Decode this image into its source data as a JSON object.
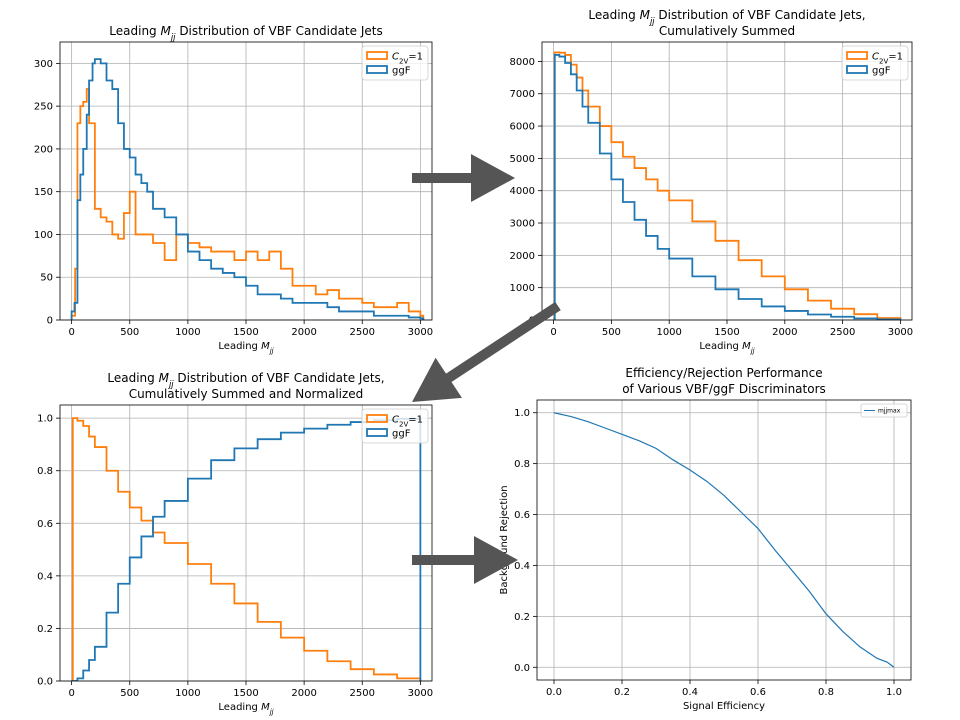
{
  "colors": {
    "c2v": "#ff7f0e",
    "ggf": "#1f77b4",
    "arrow": "#555555",
    "grid": "#b0b0b0"
  },
  "arrows": [
    {
      "name": "arrow-hist-to-cumulative"
    },
    {
      "name": "arrow-cumulative-to-normalized"
    },
    {
      "name": "arrow-normalized-to-roc"
    }
  ],
  "chart_data": [
    {
      "id": "hist",
      "type": "step",
      "title": "Leading $M_{jj}$ Distribution of VBF Candidate Jets",
      "title_parts": [
        {
          "t": "Leading "
        },
        {
          "t": "M",
          "it": true
        },
        {
          "t": "jj",
          "sub": true,
          "it": true
        },
        {
          "t": " Distribution of VBF Candidate Jets"
        }
      ],
      "title2": "",
      "xlabel_parts": [
        {
          "t": "Leading "
        },
        {
          "t": "M",
          "it": true
        },
        {
          "t": "jj",
          "sub": true,
          "it": true
        }
      ],
      "ylabel": "",
      "xlim": [
        -100,
        3100
      ],
      "ylim": [
        0,
        325
      ],
      "xticks": [
        0,
        500,
        1000,
        1500,
        2000,
        2500,
        3000
      ],
      "yticks": [
        0,
        50,
        100,
        150,
        200,
        250,
        300
      ],
      "ytick_fmt": 0,
      "grid": true,
      "legend": "upper right",
      "series": [
        {
          "label_parts": [
            {
              "t": "C",
              "it": true
            },
            {
              "t": "2V",
              "sub": true
            },
            {
              "t": "=1"
            }
          ],
          "color": "#ff7f0e",
          "x": [
            0,
            30,
            50,
            75,
            100,
            130,
            150,
            200,
            250,
            300,
            350,
            400,
            450,
            500,
            550,
            600,
            650,
            700,
            800,
            900,
            1000,
            1100,
            1200,
            1300,
            1400,
            1500,
            1600,
            1700,
            1800,
            1900,
            2000,
            2100,
            2200,
            2300,
            2400,
            2500,
            2600,
            2700,
            2800,
            2900,
            3000
          ],
          "y": [
            5,
            60,
            230,
            250,
            255,
            270,
            230,
            130,
            120,
            115,
            100,
            95,
            125,
            150,
            100,
            100,
            100,
            90,
            70,
            100,
            90,
            85,
            80,
            80,
            70,
            80,
            70,
            80,
            60,
            40,
            40,
            30,
            35,
            25,
            25,
            20,
            15,
            15,
            20,
            10,
            5
          ]
        },
        {
          "label_parts": [
            {
              "t": "ggF"
            }
          ],
          "color": "#1f77b4",
          "x": [
            0,
            25,
            50,
            75,
            100,
            130,
            150,
            180,
            200,
            250,
            300,
            350,
            400,
            450,
            500,
            550,
            600,
            650,
            700,
            800,
            900,
            1000,
            1100,
            1200,
            1300,
            1400,
            1500,
            1600,
            1700,
            1800,
            1900,
            2000,
            2100,
            2200,
            2300,
            2400,
            2500,
            2600,
            2700,
            2800,
            2900,
            3000
          ],
          "y": [
            10,
            20,
            140,
            170,
            200,
            240,
            280,
            300,
            305,
            300,
            280,
            270,
            230,
            200,
            190,
            170,
            160,
            150,
            130,
            120,
            100,
            80,
            70,
            60,
            55,
            50,
            40,
            30,
            30,
            25,
            20,
            20,
            20,
            15,
            10,
            10,
            10,
            5,
            5,
            5,
            3,
            2
          ]
        }
      ]
    },
    {
      "id": "cumulative",
      "type": "step",
      "title": "Leading $M_{jj}$ Distribution of VBF Candidate Jets,",
      "title_parts": [
        {
          "t": "Leading "
        },
        {
          "t": "M",
          "it": true
        },
        {
          "t": "jj",
          "sub": true,
          "it": true
        },
        {
          "t": " Distribution of VBF Candidate Jets,"
        }
      ],
      "title2": "Cumulatively Summed",
      "xlabel_parts": [
        {
          "t": "Leading "
        },
        {
          "t": "M",
          "it": true
        },
        {
          "t": "jj",
          "sub": true,
          "it": true
        }
      ],
      "ylabel": "",
      "xlim": [
        -100,
        3100
      ],
      "ylim": [
        0,
        8600
      ],
      "xticks": [
        0,
        500,
        1000,
        1500,
        2000,
        2500,
        3000
      ],
      "yticks": [
        0,
        1000,
        2000,
        3000,
        4000,
        5000,
        6000,
        7000,
        8000
      ],
      "ytick_fmt": 0,
      "grid": true,
      "legend": "upper right",
      "series": [
        {
          "label_parts": [
            {
              "t": "C",
              "it": true
            },
            {
              "t": "2V",
              "sub": true
            },
            {
              "t": "=1"
            }
          ],
          "color": "#ff7f0e",
          "x": [
            0,
            10,
            50,
            100,
            150,
            200,
            250,
            300,
            400,
            500,
            600,
            700,
            800,
            900,
            1000,
            1200,
            1400,
            1600,
            1800,
            2000,
            2200,
            2400,
            2600,
            2800,
            3000
          ],
          "y": [
            0,
            8280,
            8270,
            8200,
            7900,
            7500,
            7100,
            6600,
            6000,
            5500,
            5050,
            4700,
            4350,
            4000,
            3700,
            3050,
            2450,
            1850,
            1350,
            950,
            600,
            350,
            180,
            60,
            0
          ]
        },
        {
          "label_parts": [
            {
              "t": "ggF"
            }
          ],
          "color": "#1f77b4",
          "x": [
            0,
            10,
            50,
            100,
            150,
            200,
            250,
            300,
            400,
            500,
            600,
            700,
            800,
            900,
            1000,
            1200,
            1400,
            1600,
            1800,
            2000,
            2200,
            2400,
            2600,
            2800,
            3000
          ],
          "y": [
            0,
            8200,
            8150,
            7950,
            7600,
            7100,
            6600,
            6100,
            5150,
            4350,
            3650,
            3100,
            2600,
            2200,
            1900,
            1350,
            950,
            650,
            420,
            280,
            170,
            100,
            50,
            20,
            0
          ]
        }
      ]
    },
    {
      "id": "normalized",
      "type": "step",
      "title": "Leading $M_{jj}$ Distribution of VBF Candidate Jets,",
      "title_parts": [
        {
          "t": "Leading "
        },
        {
          "t": "M",
          "it": true
        },
        {
          "t": "jj",
          "sub": true,
          "it": true
        },
        {
          "t": " Distribution of VBF Candidate Jets,"
        }
      ],
      "title2": "Cumulatively Summed and Normalized",
      "xlabel_parts": [
        {
          "t": "Leading "
        },
        {
          "t": "M",
          "it": true
        },
        {
          "t": "jj",
          "sub": true,
          "it": true
        }
      ],
      "ylabel": "",
      "xlim": [
        -100,
        3100
      ],
      "ylim": [
        0,
        1.05
      ],
      "xticks": [
        0,
        500,
        1000,
        1500,
        2000,
        2500,
        3000
      ],
      "yticks": [
        0.0,
        0.2,
        0.4,
        0.6,
        0.8,
        1.0
      ],
      "ytick_fmt": 1,
      "grid": true,
      "legend": "upper right",
      "series": [
        {
          "label_parts": [
            {
              "t": "C",
              "it": true
            },
            {
              "t": "2V",
              "sub": true
            },
            {
              "t": "=1"
            }
          ],
          "color": "#ff7f0e",
          "x": [
            0,
            10,
            50,
            100,
            150,
            200,
            300,
            400,
            500,
            600,
            700,
            800,
            1000,
            1200,
            1400,
            1600,
            1800,
            2000,
            2200,
            2400,
            2600,
            2800,
            3000
          ],
          "y": [
            0,
            1.0,
            0.99,
            0.97,
            0.93,
            0.89,
            0.8,
            0.72,
            0.66,
            0.61,
            0.565,
            0.525,
            0.445,
            0.37,
            0.295,
            0.225,
            0.165,
            0.115,
            0.075,
            0.045,
            0.025,
            0.01,
            0.0
          ]
        },
        {
          "label_parts": [
            {
              "t": "ggF"
            }
          ],
          "color": "#1f77b4",
          "x": [
            0,
            10,
            50,
            100,
            150,
            200,
            300,
            400,
            500,
            600,
            700,
            800,
            1000,
            1200,
            1400,
            1600,
            1800,
            2000,
            2200,
            2400,
            2600,
            2800,
            2990,
            3000
          ],
          "y": [
            0,
            0.0,
            0.01,
            0.04,
            0.08,
            0.13,
            0.26,
            0.37,
            0.47,
            0.55,
            0.625,
            0.685,
            0.77,
            0.84,
            0.885,
            0.92,
            0.945,
            0.96,
            0.975,
            0.985,
            0.992,
            0.997,
            1.0,
            0.0
          ]
        }
      ]
    },
    {
      "id": "roc",
      "type": "line",
      "title": "Efficiency/Rejection Performance",
      "title_parts": [
        {
          "t": "Efficiency/Rejection Performance"
        }
      ],
      "title2": "of Various VBF/ggF Discriminators",
      "xlabel_parts": [
        {
          "t": "Signal Efficiency"
        }
      ],
      "ylabel": "Background Rejection",
      "xlim": [
        -0.05,
        1.05
      ],
      "ylim": [
        -0.05,
        1.05
      ],
      "xticks": [
        0.0,
        0.2,
        0.4,
        0.6,
        0.8,
        1.0
      ],
      "yticks": [
        0.0,
        0.2,
        0.4,
        0.6,
        0.8,
        1.0
      ],
      "xtick_fmt": 1,
      "ytick_fmt": 1,
      "grid": true,
      "legend": "upper right",
      "series": [
        {
          "label_parts": [
            {
              "t": "mjjmax"
            }
          ],
          "color": "#1f77b4",
          "x": [
            0.0,
            0.05,
            0.1,
            0.15,
            0.2,
            0.25,
            0.3,
            0.35,
            0.4,
            0.45,
            0.5,
            0.55,
            0.6,
            0.65,
            0.7,
            0.75,
            0.8,
            0.85,
            0.9,
            0.95,
            0.98,
            1.0
          ],
          "y": [
            1.0,
            0.985,
            0.965,
            0.94,
            0.915,
            0.89,
            0.86,
            0.815,
            0.775,
            0.73,
            0.675,
            0.61,
            0.545,
            0.46,
            0.38,
            0.3,
            0.21,
            0.14,
            0.08,
            0.035,
            0.02,
            0.0
          ]
        }
      ]
    }
  ]
}
